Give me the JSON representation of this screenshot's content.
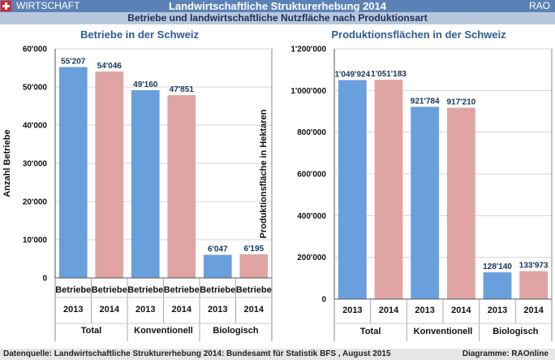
{
  "header": {
    "section": "WIRTSCHAFT",
    "title": "Landwirtschaftliche Strukturerhebung 2014",
    "brand": "RAO",
    "subtitle": "Betriebe und landwirtschaftliche Nutzfläche nach Produktionsart"
  },
  "footer": {
    "source": "Datenquelle: Landwirtschaftliche Strukturerhebung 2014: Bundesamt für Statistik BFS , August 2015",
    "credit": "Diagramme: RAOnline"
  },
  "colors": {
    "blue": "#6a9fde",
    "pink": "#e0a4a4"
  },
  "chart_data": [
    {
      "type": "bar",
      "title": "Betriebe in der Schweiz",
      "ylabel": "Anzahl Betriebe",
      "ylim": [
        0,
        60000
      ],
      "yticks": [
        "0",
        "10'000",
        "20'000",
        "30'000",
        "40'000",
        "50'000",
        "60'000"
      ],
      "yticks_values": [
        0,
        10000,
        20000,
        30000,
        40000,
        50000,
        60000
      ],
      "groups": [
        "Total",
        "Konventionell",
        "Biologisch"
      ],
      "categories": [
        "2013",
        "2014",
        "2013",
        "2014",
        "2013",
        "2014"
      ],
      "category_labels": [
        "Betriebe",
        "Betriebe",
        "Betriebe",
        "Betriebe",
        "Betriebe",
        "Betriebe"
      ],
      "values": [
        55207,
        54046,
        49160,
        47851,
        6047,
        6195
      ],
      "value_labels": [
        "55'207",
        "54'046",
        "49'160",
        "47'851",
        "6'047",
        "6'195"
      ]
    },
    {
      "type": "bar",
      "title": "Produktionsflächen in der Schweiz",
      "ylabel": "Produktionsfläche in Hektaren",
      "ylim": [
        0,
        1200000
      ],
      "yticks": [
        "0",
        "200'000",
        "400'000",
        "600'000",
        "800'000",
        "1'000'000",
        "1'200'000"
      ],
      "yticks_values": [
        0,
        200000,
        400000,
        600000,
        800000,
        1000000,
        1200000
      ],
      "groups": [
        "Total",
        "Konventionell",
        "Biologisch"
      ],
      "categories": [
        "2013",
        "2014",
        "2013",
        "2014",
        "2013",
        "2014"
      ],
      "values": [
        1049924,
        1051183,
        921784,
        917210,
        128140,
        133973
      ],
      "value_labels": [
        "1'049'924",
        "1'051'183",
        "921'784",
        "917'210",
        "128'140",
        "133'973"
      ]
    }
  ]
}
